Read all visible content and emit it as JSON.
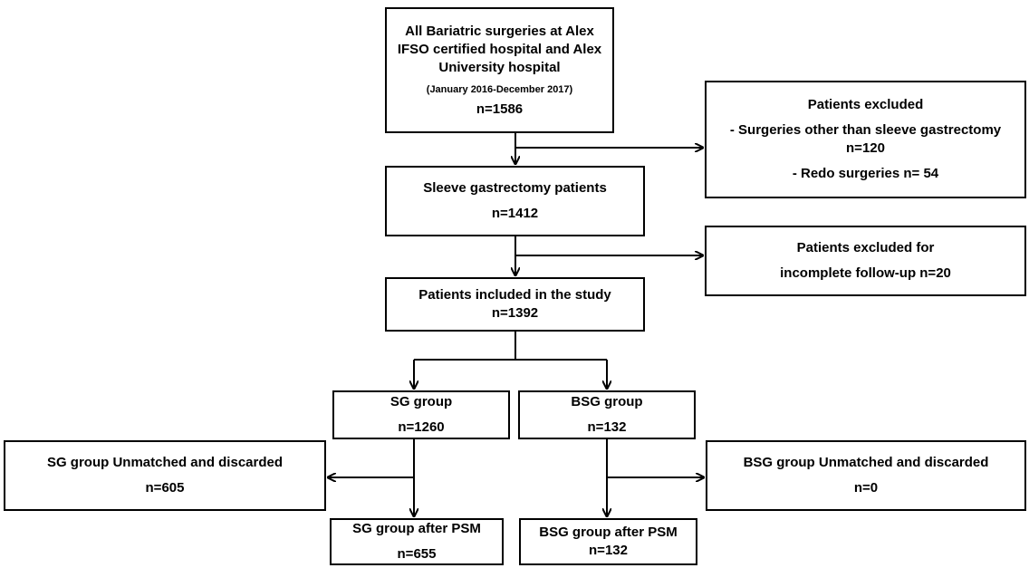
{
  "boxes": {
    "all_surgeries": {
      "title_lines": [
        "All Bariatric surgeries at Alex",
        "IFSO certified hospital and Alex",
        "University hospital"
      ],
      "period": "(January 2016-December 2017)",
      "n": "n=1586"
    },
    "excluded_1": {
      "title": "Patients excluded",
      "lines": [
        "- Surgeries other than sleeve gastrectomy",
        "n=120",
        "- Redo surgeries n= 54"
      ]
    },
    "sleeve": {
      "title": "Sleeve gastrectomy patients",
      "n": "n=1412"
    },
    "excluded_2": {
      "lines": [
        "Patients excluded for",
        "incomplete follow-up n=20"
      ]
    },
    "included": {
      "title": "Patients included in the study",
      "n": "n=1392"
    },
    "sg_group": {
      "title": "SG group",
      "n": "n=1260"
    },
    "bsg_group": {
      "title": "BSG group",
      "n": "n=132"
    },
    "sg_unmatched": {
      "title": "SG group Unmatched and discarded",
      "n": "n=605"
    },
    "bsg_unmatched": {
      "title": "BSG group Unmatched and discarded",
      "n": "n=0"
    },
    "sg_psm": {
      "title": "SG group after PSM",
      "n": "n=655"
    },
    "bsg_psm": {
      "title": "BSG group after PSM",
      "n": "n=132"
    }
  }
}
